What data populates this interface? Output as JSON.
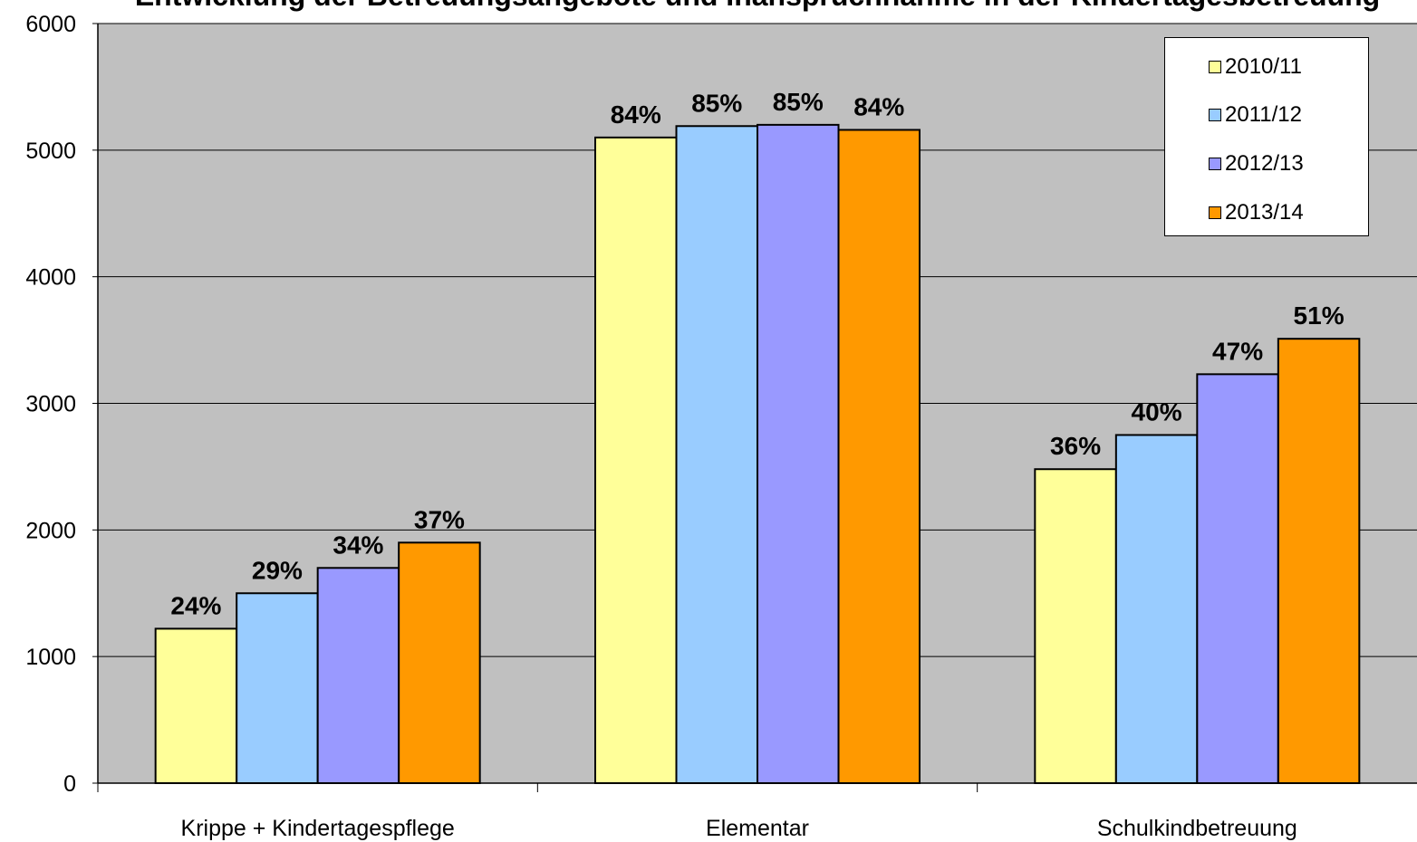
{
  "title": "Entwicklung der Betreuungsangebote und Inanspruchnahme in der Kindertagesbetreuung",
  "chart_data": {
    "type": "bar",
    "categories": [
      "Krippe + Kindertagespflege",
      "Elementar",
      "Schulkindbetreuung"
    ],
    "series": [
      {
        "name": "2010/11",
        "color": "#FFFF99",
        "values": [
          1220,
          5100,
          2480
        ],
        "labels": [
          "24%",
          "84%",
          "36%"
        ]
      },
      {
        "name": "2011/12",
        "color": "#99CCFF",
        "values": [
          1500,
          5190,
          2750
        ],
        "labels": [
          "29%",
          "85%",
          "40%"
        ]
      },
      {
        "name": "2012/13",
        "color": "#9999FF",
        "values": [
          1700,
          5200,
          3230
        ],
        "labels": [
          "34%",
          "85%",
          "47%"
        ]
      },
      {
        "name": "2013/14",
        "color": "#FF9900",
        "values": [
          1900,
          5160,
          3510
        ],
        "labels": [
          "37%",
          "84%",
          "51%"
        ]
      }
    ],
    "ylim": [
      0,
      6000
    ],
    "yticks": [
      0,
      1000,
      2000,
      3000,
      4000,
      5000,
      6000
    ],
    "grid": true,
    "legend_position": "top-right",
    "plot_background": "#C0C0C0"
  }
}
